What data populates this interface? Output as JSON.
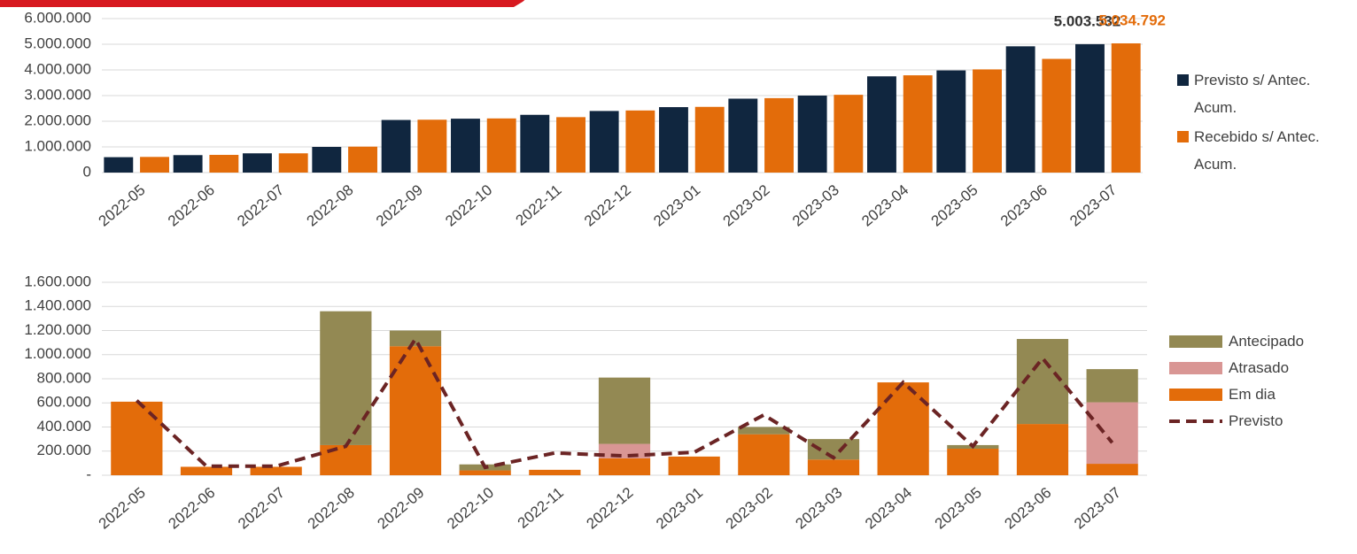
{
  "chart_data": [
    {
      "type": "bar",
      "categories": [
        "2022-05",
        "2022-06",
        "2022-07",
        "2022-08",
        "2022-09",
        "2022-10",
        "2022-11",
        "2022-12",
        "2023-01",
        "2023-02",
        "2023-03",
        "2023-04",
        "2023-05",
        "2023-06",
        "2023-07"
      ],
      "series": [
        {
          "name": "Previsto s/ Antec. Acum.",
          "color": "#10263f",
          "values": [
            600000,
            680000,
            750000,
            1000000,
            2050000,
            2100000,
            2250000,
            2400000,
            2550000,
            2880000,
            3000000,
            3750000,
            3980000,
            4920000,
            5003532
          ],
          "value_labels": [
            null,
            null,
            null,
            null,
            null,
            null,
            null,
            null,
            null,
            null,
            null,
            null,
            null,
            null,
            "5.003.532"
          ],
          "label_color": "#333333"
        },
        {
          "name": "Recebido s/ Antec. Acum.",
          "color": "#e36c0a",
          "values": [
            610000,
            690000,
            750000,
            1010000,
            2060000,
            2110000,
            2160000,
            2420000,
            2560000,
            2900000,
            3030000,
            3790000,
            4020000,
            4430000,
            5034792
          ],
          "value_labels": [
            null,
            null,
            null,
            null,
            null,
            null,
            null,
            null,
            null,
            null,
            null,
            null,
            null,
            null,
            "5.034.792"
          ],
          "label_color": "#e36c0a"
        }
      ],
      "ylim": [
        0,
        6000000
      ],
      "yticks": [
        0,
        {
          "value": 1000000,
          "label": "1.000.000"
        },
        {
          "value": 2000000,
          "label": "2.000.000"
        },
        {
          "value": 3000000,
          "label": "3.000.000"
        },
        {
          "value": 4000000,
          "label": "4.000.000"
        },
        {
          "value": 5000000,
          "label": "5.000.000"
        },
        {
          "value": 6000000,
          "label": "6.000.000"
        }
      ],
      "grid": true,
      "legend": "right"
    },
    {
      "type": "bar",
      "stacked": true,
      "categories": [
        "2022-05",
        "2022-06",
        "2022-07",
        "2022-08",
        "2022-09",
        "2022-10",
        "2022-11",
        "2022-12",
        "2023-01",
        "2023-02",
        "2023-03",
        "2023-04",
        "2023-05",
        "2023-06",
        "2023-07"
      ],
      "series": [
        {
          "name": "Em dia",
          "color": "#e36c0a",
          "values": [
            610000,
            70000,
            70000,
            250000,
            1070000,
            40000,
            45000,
            140000,
            155000,
            340000,
            130000,
            770000,
            220000,
            425000,
            95000
          ]
        },
        {
          "name": "Atrasado",
          "color": "#d99694",
          "values": [
            0,
            0,
            0,
            0,
            0,
            0,
            0,
            120000,
            0,
            0,
            0,
            0,
            0,
            0,
            510000
          ]
        },
        {
          "name": "Antecipado",
          "color": "#938953",
          "values": [
            0,
            0,
            0,
            1110000,
            130000,
            50000,
            0,
            550000,
            0,
            60000,
            170000,
            0,
            30000,
            705000,
            275000
          ]
        },
        {
          "name": "Previsto",
          "color": "#6b2424",
          "type": "line",
          "dashed": true,
          "values": [
            620000,
            75000,
            75000,
            240000,
            1130000,
            65000,
            185000,
            160000,
            190000,
            500000,
            145000,
            770000,
            240000,
            970000,
            270000
          ]
        }
      ],
      "ylim": [
        0,
        1600000
      ],
      "yticks": [
        {
          "value": 0,
          "label": "-"
        },
        {
          "value": 200000,
          "label": "200.000"
        },
        {
          "value": 400000,
          "label": "400.000"
        },
        {
          "value": 600000,
          "label": "600.000"
        },
        {
          "value": 800000,
          "label": "800.000"
        },
        {
          "value": 1000000,
          "label": "1.000.000"
        },
        {
          "value": 1200000,
          "label": "1.200.000"
        },
        {
          "value": 1400000,
          "label": "1.400.000"
        },
        {
          "value": 1600000,
          "label": "1.600.000"
        }
      ],
      "grid": true,
      "legend": "right"
    }
  ]
}
